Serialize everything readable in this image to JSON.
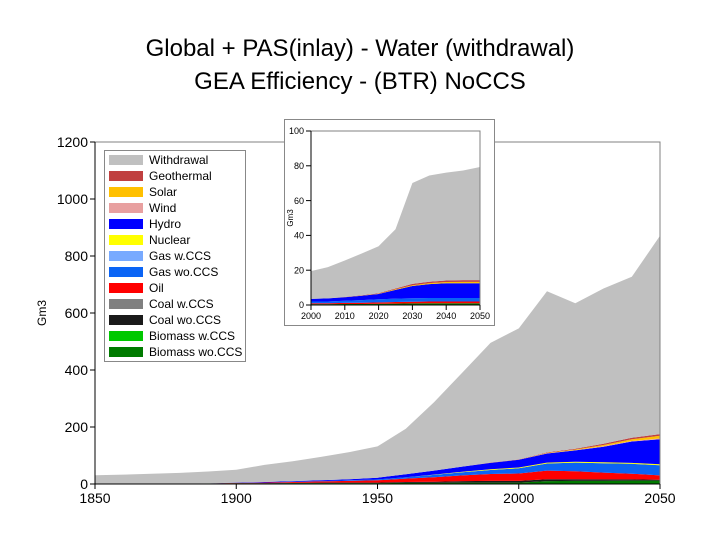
{
  "title_line1": "Global + PAS(inlay) - Water (withdrawal)",
  "title_line2": "GEA Efficiency - (BTR) NoCCS",
  "chart_data": [
    {
      "type": "area",
      "stacked": true,
      "ylabel": "Gm3",
      "xlim": [
        1850,
        2050
      ],
      "ylim": [
        0,
        1200
      ],
      "xticks": [
        1850,
        1900,
        1950,
        2000,
        2050
      ],
      "yticks": [
        0,
        200,
        400,
        600,
        800,
        1000,
        1200
      ],
      "legend_position": "top-left",
      "x": [
        1850,
        1860,
        1870,
        1880,
        1890,
        1900,
        1910,
        1920,
        1930,
        1940,
        1950,
        1960,
        1970,
        1980,
        1990,
        2000,
        2010,
        2020,
        2030,
        2040,
        2050
      ],
      "series": [
        {
          "name": "Biomass wo.CCS",
          "color": "#007a00",
          "values": [
            1,
            1,
            1,
            1,
            2,
            2,
            2,
            3,
            3,
            3,
            3,
            4,
            4,
            5,
            5,
            5,
            10,
            11,
            11,
            12,
            12
          ]
        },
        {
          "name": "Biomass w.CCS",
          "color": "#00c800",
          "values": [
            0,
            0,
            0,
            0,
            0,
            0,
            0,
            0,
            0,
            0,
            0,
            0,
            0,
            0,
            0,
            0,
            0,
            0,
            0,
            0,
            0
          ]
        },
        {
          "name": "Coal wo.CCS",
          "color": "#1a1a1a",
          "values": [
            0,
            0,
            0,
            0,
            0,
            1,
            1,
            1,
            2,
            2,
            2,
            3,
            4,
            5,
            6,
            6,
            7,
            6,
            5,
            4,
            3
          ]
        },
        {
          "name": "Coal w.CCS",
          "color": "#808080",
          "values": [
            0,
            0,
            0,
            0,
            0,
            0,
            0,
            0,
            0,
            0,
            0,
            0,
            0,
            0,
            0,
            0,
            0,
            0,
            0,
            0,
            0
          ]
        },
        {
          "name": "Oil",
          "color": "#ff0000",
          "values": [
            0,
            0,
            0,
            0,
            0,
            1,
            2,
            3,
            4,
            6,
            8,
            12,
            16,
            20,
            24,
            26,
            30,
            28,
            24,
            20,
            15
          ]
        },
        {
          "name": "Gas wo.CCS",
          "color": "#0a64f5",
          "values": [
            0,
            0,
            0,
            0,
            0,
            0,
            0,
            1,
            1,
            2,
            3,
            5,
            8,
            11,
            14,
            18,
            25,
            30,
            33,
            35,
            36
          ]
        },
        {
          "name": "Gas w.CCS",
          "color": "#78aaff",
          "values": [
            0,
            0,
            0,
            0,
            0,
            0,
            0,
            0,
            0,
            0,
            0,
            0,
            0,
            0,
            0,
            0,
            0,
            0,
            0,
            0,
            0
          ]
        },
        {
          "name": "Nuclear",
          "color": "#ffff00",
          "values": [
            0,
            0,
            0,
            0,
            0,
            0,
            0,
            0,
            0,
            0,
            0,
            0,
            1,
            2,
            3,
            3,
            3,
            3,
            3,
            3,
            3
          ]
        },
        {
          "name": "Hydro",
          "color": "#0000ff",
          "values": [
            0,
            0,
            0,
            0,
            0,
            1,
            2,
            2,
            3,
            4,
            6,
            10,
            14,
            18,
            22,
            27,
            32,
            40,
            55,
            75,
            88
          ]
        },
        {
          "name": "Wind",
          "color": "#e8a0a0",
          "values": [
            0,
            0,
            0,
            0,
            0,
            0,
            0,
            0,
            0,
            0,
            0,
            0,
            0,
            0,
            0,
            0,
            1,
            1,
            2,
            2,
            3
          ]
        },
        {
          "name": "Solar",
          "color": "#ffc000",
          "values": [
            0,
            0,
            0,
            0,
            0,
            0,
            0,
            0,
            0,
            0,
            0,
            0,
            0,
            0,
            0,
            0,
            1,
            2,
            4,
            6,
            9
          ]
        },
        {
          "name": "Geothermal",
          "color": "#c04040",
          "values": [
            0,
            0,
            0,
            0,
            0,
            0,
            0,
            0,
            0,
            0,
            0,
            0,
            0,
            0,
            1,
            1,
            2,
            3,
            4,
            5,
            6
          ]
        },
        {
          "name": "Withdrawal",
          "color": "#c0c0c0",
          "values": [
            30,
            32,
            35,
            38,
            42,
            45,
            60,
            70,
            82,
            95,
            110,
            160,
            240,
            330,
            420,
            460,
            565,
            510,
            545,
            565,
            696
          ]
        }
      ]
    },
    {
      "type": "area",
      "stacked": true,
      "inset": true,
      "ylabel": "Gm3",
      "xlim": [
        2000,
        2050
      ],
      "ylim": [
        0,
        100
      ],
      "xticks": [
        2000,
        2010,
        2020,
        2030,
        2040,
        2050
      ],
      "yticks": [
        0,
        20,
        40,
        60,
        80,
        100
      ],
      "x": [
        2000,
        2005,
        2010,
        2015,
        2020,
        2025,
        2030,
        2035,
        2040,
        2045,
        2050
      ],
      "series": [
        {
          "name": "Biomass wo.CCS",
          "color": "#007a00",
          "values": [
            0.5,
            0.5,
            0.6,
            0.6,
            0.7,
            0.8,
            0.9,
            1.0,
            1.0,
            1.0,
            1.0
          ]
        },
        {
          "name": "Oil",
          "color": "#ff0000",
          "values": [
            0.5,
            0.5,
            0.6,
            0.7,
            0.8,
            0.9,
            1.0,
            1.0,
            1.0,
            1.0,
            1.0
          ]
        },
        {
          "name": "Gas wo.CCS",
          "color": "#0a64f5",
          "values": [
            1.0,
            1.0,
            1.2,
            1.5,
            1.8,
            2.0,
            2.0,
            2.0,
            2.0,
            2.0,
            2.0
          ]
        },
        {
          "name": "Hydro",
          "color": "#0000ff",
          "values": [
            1.5,
            1.8,
            2.0,
            2.5,
            3.0,
            5.0,
            7.0,
            8.0,
            8.5,
            8.5,
            8.5
          ]
        },
        {
          "name": "Solar",
          "color": "#ffc000",
          "values": [
            0,
            0,
            0.1,
            0.1,
            0.2,
            0.3,
            0.5,
            0.6,
            0.7,
            0.8,
            0.8
          ]
        },
        {
          "name": "Geothermal",
          "color": "#c04040",
          "values": [
            0,
            0,
            0.1,
            0.2,
            0.3,
            0.5,
            0.7,
            0.8,
            0.9,
            1.0,
            1.0
          ]
        },
        {
          "name": "Withdrawal",
          "color": "#c0c0c0",
          "values": [
            16,
            18,
            21,
            24,
            27,
            34,
            58,
            61,
            62,
            63,
            65
          ]
        }
      ]
    }
  ]
}
